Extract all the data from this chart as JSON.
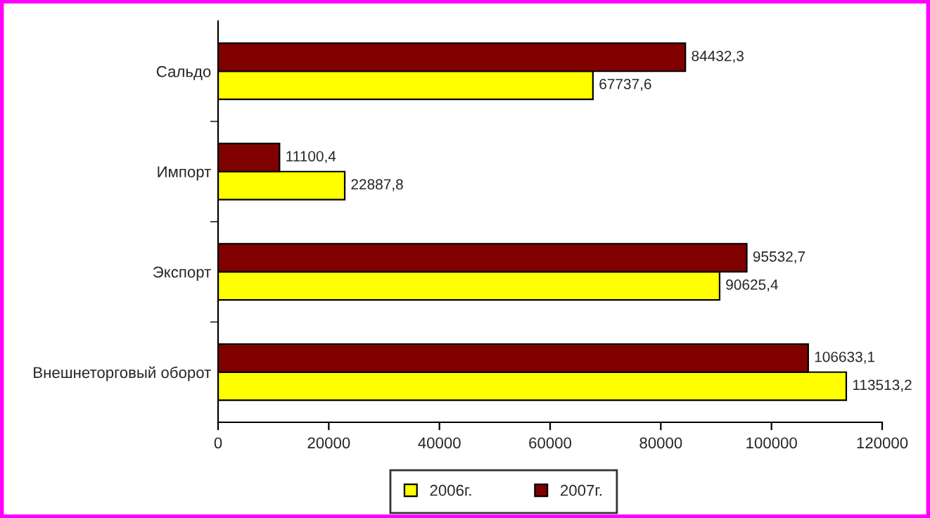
{
  "chart_data": {
    "type": "bar",
    "orientation": "horizontal",
    "categories": [
      "Сальдо",
      "Импорт",
      "Экспорт",
      "Внешнеторговый оборот"
    ],
    "series": [
      {
        "name": "2006г.",
        "color": "#ffff00",
        "values": [
          67737.6,
          22887.8,
          90625.4,
          113513.2
        ],
        "value_labels": [
          "67737,6",
          "22887,8",
          "90625,4",
          "113513,2"
        ]
      },
      {
        "name": "2007г.",
        "color": "#800000",
        "values": [
          84432.3,
          11100.4,
          95532.7,
          106633.1
        ],
        "value_labels": [
          "84432,3",
          "11100,4",
          "95532,7",
          "106633,1"
        ]
      }
    ],
    "xlim": [
      0,
      120000
    ],
    "xticks": [
      0,
      20000,
      40000,
      60000,
      80000,
      100000,
      120000
    ],
    "grid": false,
    "legend": "bottom"
  }
}
